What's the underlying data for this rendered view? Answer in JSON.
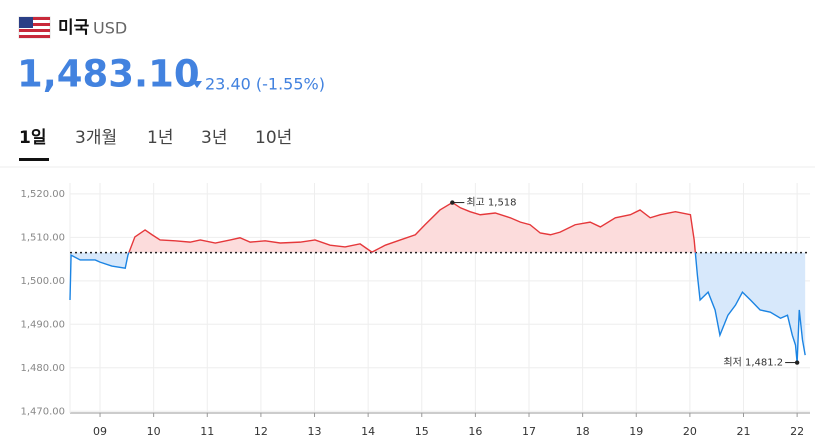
{
  "header": {
    "country": "미국",
    "currency": "USD",
    "price": "1,483.10",
    "change": "23.40 (-1.55%)"
  },
  "tabs": {
    "items": [
      "1일",
      "3개월",
      "1년",
      "3년",
      "10년"
    ],
    "active": 0
  },
  "chart_data": {
    "type": "line",
    "x": [
      8.44,
      8.46,
      8.63,
      8.91,
      9.0,
      9.22,
      9.47,
      9.52,
      9.65,
      9.84,
      9.97,
      10.12,
      10.4,
      10.68,
      10.87,
      11.15,
      11.43,
      11.61,
      11.8,
      12.08,
      12.36,
      12.73,
      13.01,
      13.29,
      13.57,
      13.85,
      14.07,
      14.32,
      14.6,
      14.88,
      15.06,
      15.34,
      15.57,
      15.72,
      15.9,
      16.09,
      16.37,
      16.65,
      16.84,
      17.02,
      17.21,
      17.4,
      17.58,
      17.86,
      18.14,
      18.33,
      18.61,
      18.89,
      19.07,
      19.26,
      19.45,
      19.73,
      20.01,
      20.08,
      20.14,
      20.19,
      20.34,
      20.47,
      20.56,
      20.71,
      20.85,
      20.98,
      21.13,
      21.31,
      21.5,
      21.69,
      21.82,
      21.91,
      21.97,
      22.0,
      22.04,
      22.1,
      22.15
    ],
    "values": [
      1495.6,
      1505.9,
      1504.8,
      1504.8,
      1504.3,
      1503.4,
      1502.9,
      1505.9,
      1510.1,
      1511.7,
      1510.6,
      1509.4,
      1509.2,
      1508.9,
      1509.4,
      1508.7,
      1509.4,
      1509.9,
      1508.9,
      1509.2,
      1508.7,
      1508.9,
      1509.4,
      1508.2,
      1507.8,
      1508.5,
      1506.6,
      1508.2,
      1509.4,
      1510.6,
      1512.9,
      1516.3,
      1518.0,
      1516.8,
      1515.9,
      1515.2,
      1515.6,
      1514.5,
      1513.5,
      1512.9,
      1511.0,
      1510.6,
      1511.2,
      1512.9,
      1513.5,
      1512.4,
      1514.5,
      1515.2,
      1516.3,
      1514.5,
      1515.2,
      1515.9,
      1515.2,
      1509.4,
      1501.3,
      1495.6,
      1497.4,
      1493.3,
      1487.5,
      1492.1,
      1494.4,
      1497.4,
      1495.6,
      1493.3,
      1492.8,
      1491.4,
      1492.1,
      1487.5,
      1485.2,
      1481.2,
      1493.3,
      1486.4,
      1482.9
    ],
    "reference": 1506.5,
    "color_above": "#e5383b",
    "color_below": "#1b84e3",
    "fill_above": "#fcdcdc",
    "fill_below": "#d7e8fb",
    "xlim": [
      8.44,
      22.24
    ],
    "xticks": [
      {
        "value": 9,
        "label": "09"
      },
      10,
      11,
      12,
      13,
      14,
      15,
      16,
      17,
      18,
      19,
      20,
      21,
      22
    ],
    "ylim": [
      1469.6,
      1522.5
    ],
    "yticks": [
      {
        "value": 1470,
        "label": "1,470.00"
      },
      {
        "value": 1480,
        "label": "1,480.00"
      },
      {
        "value": 1490,
        "label": "1,490.00"
      },
      {
        "value": 1500,
        "label": "1,500.00"
      },
      {
        "value": 1510,
        "label": "1,510.00"
      },
      {
        "value": 1520,
        "label": "1,520.00"
      }
    ],
    "grid": true,
    "annotations": [
      {
        "label": "최고 1,518",
        "x": 15.57,
        "value": 1518
      },
      {
        "label": "최저 1,481.2",
        "x": 22.0,
        "value": 1481.2
      }
    ]
  }
}
